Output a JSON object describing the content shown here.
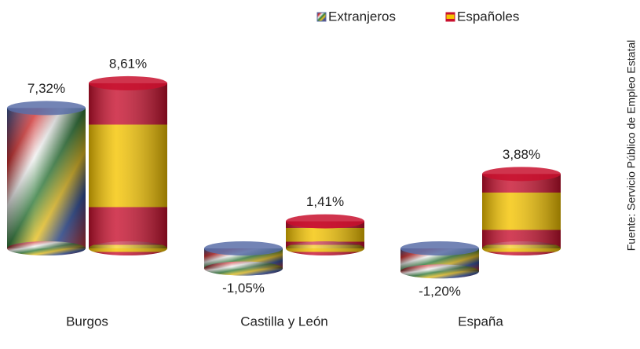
{
  "chart_data": {
    "type": "bar",
    "categories": [
      "Burgos",
      "Castilla y León",
      "España"
    ],
    "series": [
      {
        "name": "Extranjeros",
        "color": "#5a6fa8",
        "values": [
          7.32,
          -1.05,
          -1.2
        ],
        "value_labels": [
          "7,32%",
          "-1,05%",
          "-1,20%"
        ]
      },
      {
        "name": "Españoles",
        "color": "#c8102e",
        "values": [
          8.61,
          1.41,
          3.88
        ],
        "value_labels": [
          "8,61%",
          "1,41%",
          "3,88%"
        ]
      }
    ],
    "legend": "top-right",
    "source": "Fuente: Servicio Público de Empleo Estatal"
  }
}
